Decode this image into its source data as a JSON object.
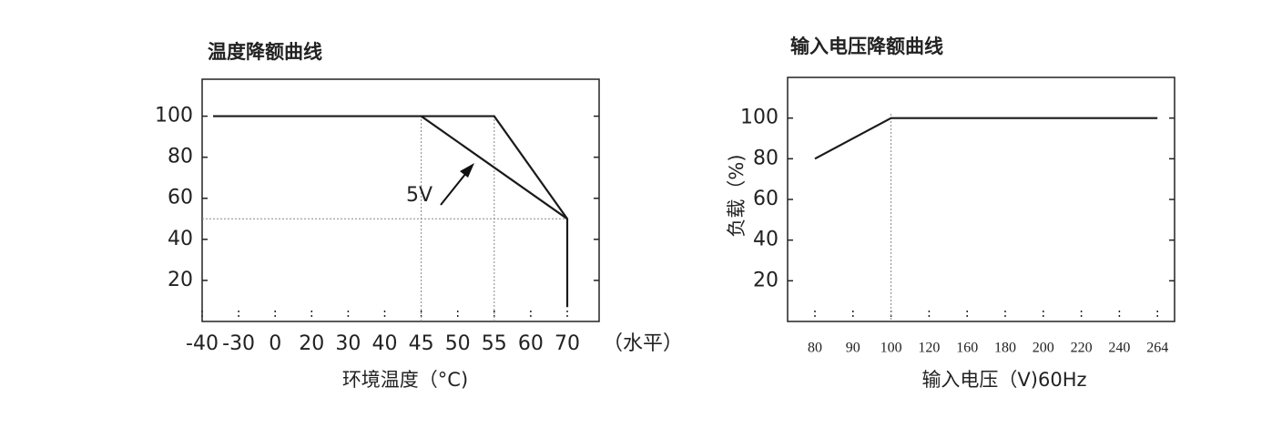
{
  "chart_data": [
    {
      "type": "line",
      "title": "温度降额曲线",
      "x_label": "环境温度（°C)",
      "x_unit_label": "（水平）",
      "xticks": [
        -40,
        -30,
        0,
        20,
        30,
        40,
        45,
        50,
        55,
        60,
        70
      ],
      "ylim": [
        0,
        118
      ],
      "yticks": [
        20,
        40,
        60,
        80,
        100
      ],
      "series": [
        {
          "color": "#1a1a1a",
          "x": [
            -37,
            55,
            70,
            70
          ],
          "values": [
            100,
            100,
            50,
            7
          ]
        },
        {
          "color": "#1a1a1a",
          "x": [
            45,
            70
          ],
          "values": [
            100,
            50
          ]
        }
      ],
      "vlines": [
        45,
        55
      ],
      "hlines": [
        50
      ],
      "annotation": "5V"
    },
    {
      "type": "line",
      "title": "输入电压降额曲线",
      "y_label": "负载（%)",
      "x_label": "输入电压（V)60Hz",
      "xticks": [
        80,
        90,
        100,
        120,
        160,
        180,
        200,
        220,
        240,
        264
      ],
      "ylim": [
        0,
        120
      ],
      "yticks": [
        20,
        40,
        60,
        80,
        100
      ],
      "series": [
        {
          "color": "#1a1a1a",
          "x": [
            80,
            100,
            264
          ],
          "values": [
            80,
            100,
            100
          ]
        }
      ],
      "vlines": [
        100
      ]
    }
  ]
}
